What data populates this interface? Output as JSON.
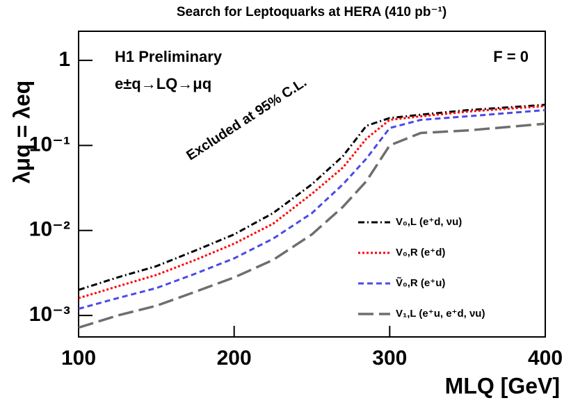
{
  "chart_data": {
    "type": "line",
    "title": "Search for Leptoquarks at HERA (410 pb⁻¹)",
    "x_label": "MLQ [GeV]",
    "y_label": "λμq = λeq",
    "annotations": [
      "H1 Preliminary",
      "e±q→LQ→μq",
      "F = 0",
      "Excluded at 95% C.L."
    ],
    "x": [
      100,
      125,
      150,
      175,
      200,
      225,
      250,
      270,
      285,
      300,
      320,
      350,
      400
    ],
    "series": [
      {
        "name": "V₀,L (e⁺d, νu)",
        "color": "#000000",
        "style": "dash-dot",
        "values": [
          0.002,
          0.0028,
          0.0038,
          0.0058,
          0.009,
          0.016,
          0.035,
          0.075,
          0.17,
          0.21,
          0.23,
          0.26,
          0.3
        ]
      },
      {
        "name": "V₀,R (e⁺d)",
        "color": "#ff0000",
        "style": "dotted",
        "values": [
          0.0016,
          0.0022,
          0.003,
          0.0045,
          0.007,
          0.012,
          0.027,
          0.055,
          0.12,
          0.2,
          0.22,
          0.25,
          0.29
        ]
      },
      {
        "name": "Ṽ₀,R (e⁺u)",
        "color": "#4a4aea",
        "style": "dashed",
        "values": [
          0.0012,
          0.0016,
          0.0021,
          0.0031,
          0.0047,
          0.008,
          0.016,
          0.035,
          0.07,
          0.16,
          0.2,
          0.22,
          0.26
        ]
      },
      {
        "name": "V₁,L (e⁺u, e⁺d, νu)",
        "color": "#6e6e6e",
        "style": "long-dash",
        "values": [
          0.00072,
          0.001,
          0.0013,
          0.0019,
          0.0028,
          0.0045,
          0.009,
          0.019,
          0.038,
          0.1,
          0.14,
          0.15,
          0.18
        ]
      }
    ],
    "xlim": [
      100,
      400
    ],
    "xticks": [
      100,
      200,
      300,
      400
    ],
    "ylim": [
      0.00056,
      2.2
    ],
    "yscale": "log",
    "yticks": [
      1,
      {
        "value": 0.1,
        "label": "10⁻¹"
      },
      {
        "value": 0.01,
        "label": "10⁻²"
      },
      {
        "value": 0.001,
        "label": "10⁻³"
      }
    ],
    "grid": false,
    "legend": "lower right"
  }
}
